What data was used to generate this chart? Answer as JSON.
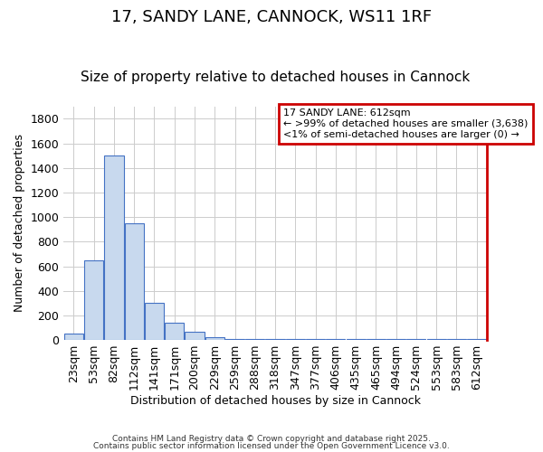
{
  "title": "17, SANDY LANE, CANNOCK, WS11 1RF",
  "subtitle": "Size of property relative to detached houses in Cannock",
  "xlabel": "Distribution of detached houses by size in Cannock",
  "ylabel": "Number of detached properties",
  "categories": [
    "23sqm",
    "53sqm",
    "82sqm",
    "112sqm",
    "141sqm",
    "171sqm",
    "200sqm",
    "229sqm",
    "259sqm",
    "288sqm",
    "318sqm",
    "347sqm",
    "377sqm",
    "406sqm",
    "435sqm",
    "465sqm",
    "494sqm",
    "524sqm",
    "553sqm",
    "583sqm",
    "612sqm"
  ],
  "values": [
    50,
    650,
    1500,
    950,
    300,
    140,
    70,
    25,
    5,
    5,
    5,
    5,
    5,
    5,
    5,
    5,
    5,
    5,
    5,
    5,
    5
  ],
  "bar_color": "#c8d9ee",
  "bar_edge_color": "#4472c4",
  "ylim": [
    0,
    1900
  ],
  "yticks": [
    0,
    200,
    400,
    600,
    800,
    1000,
    1200,
    1400,
    1600,
    1800
  ],
  "legend_title": "17 SANDY LANE: 612sqm",
  "legend_line1": "← >99% of detached houses are smaller (3,638)",
  "legend_line2": "<1% of semi-detached houses are larger (0) →",
  "legend_border_color": "#cc0000",
  "footer_line1": "Contains HM Land Registry data © Crown copyright and database right 2025.",
  "footer_line2": "Contains public sector information licensed under the Open Government Licence v3.0.",
  "bg_color": "#ffffff",
  "grid_color": "#cccccc",
  "title_fontsize": 13,
  "subtitle_fontsize": 11,
  "tick_fontsize": 9,
  "ylabel_fontsize": 9,
  "xlabel_fontsize": 9
}
